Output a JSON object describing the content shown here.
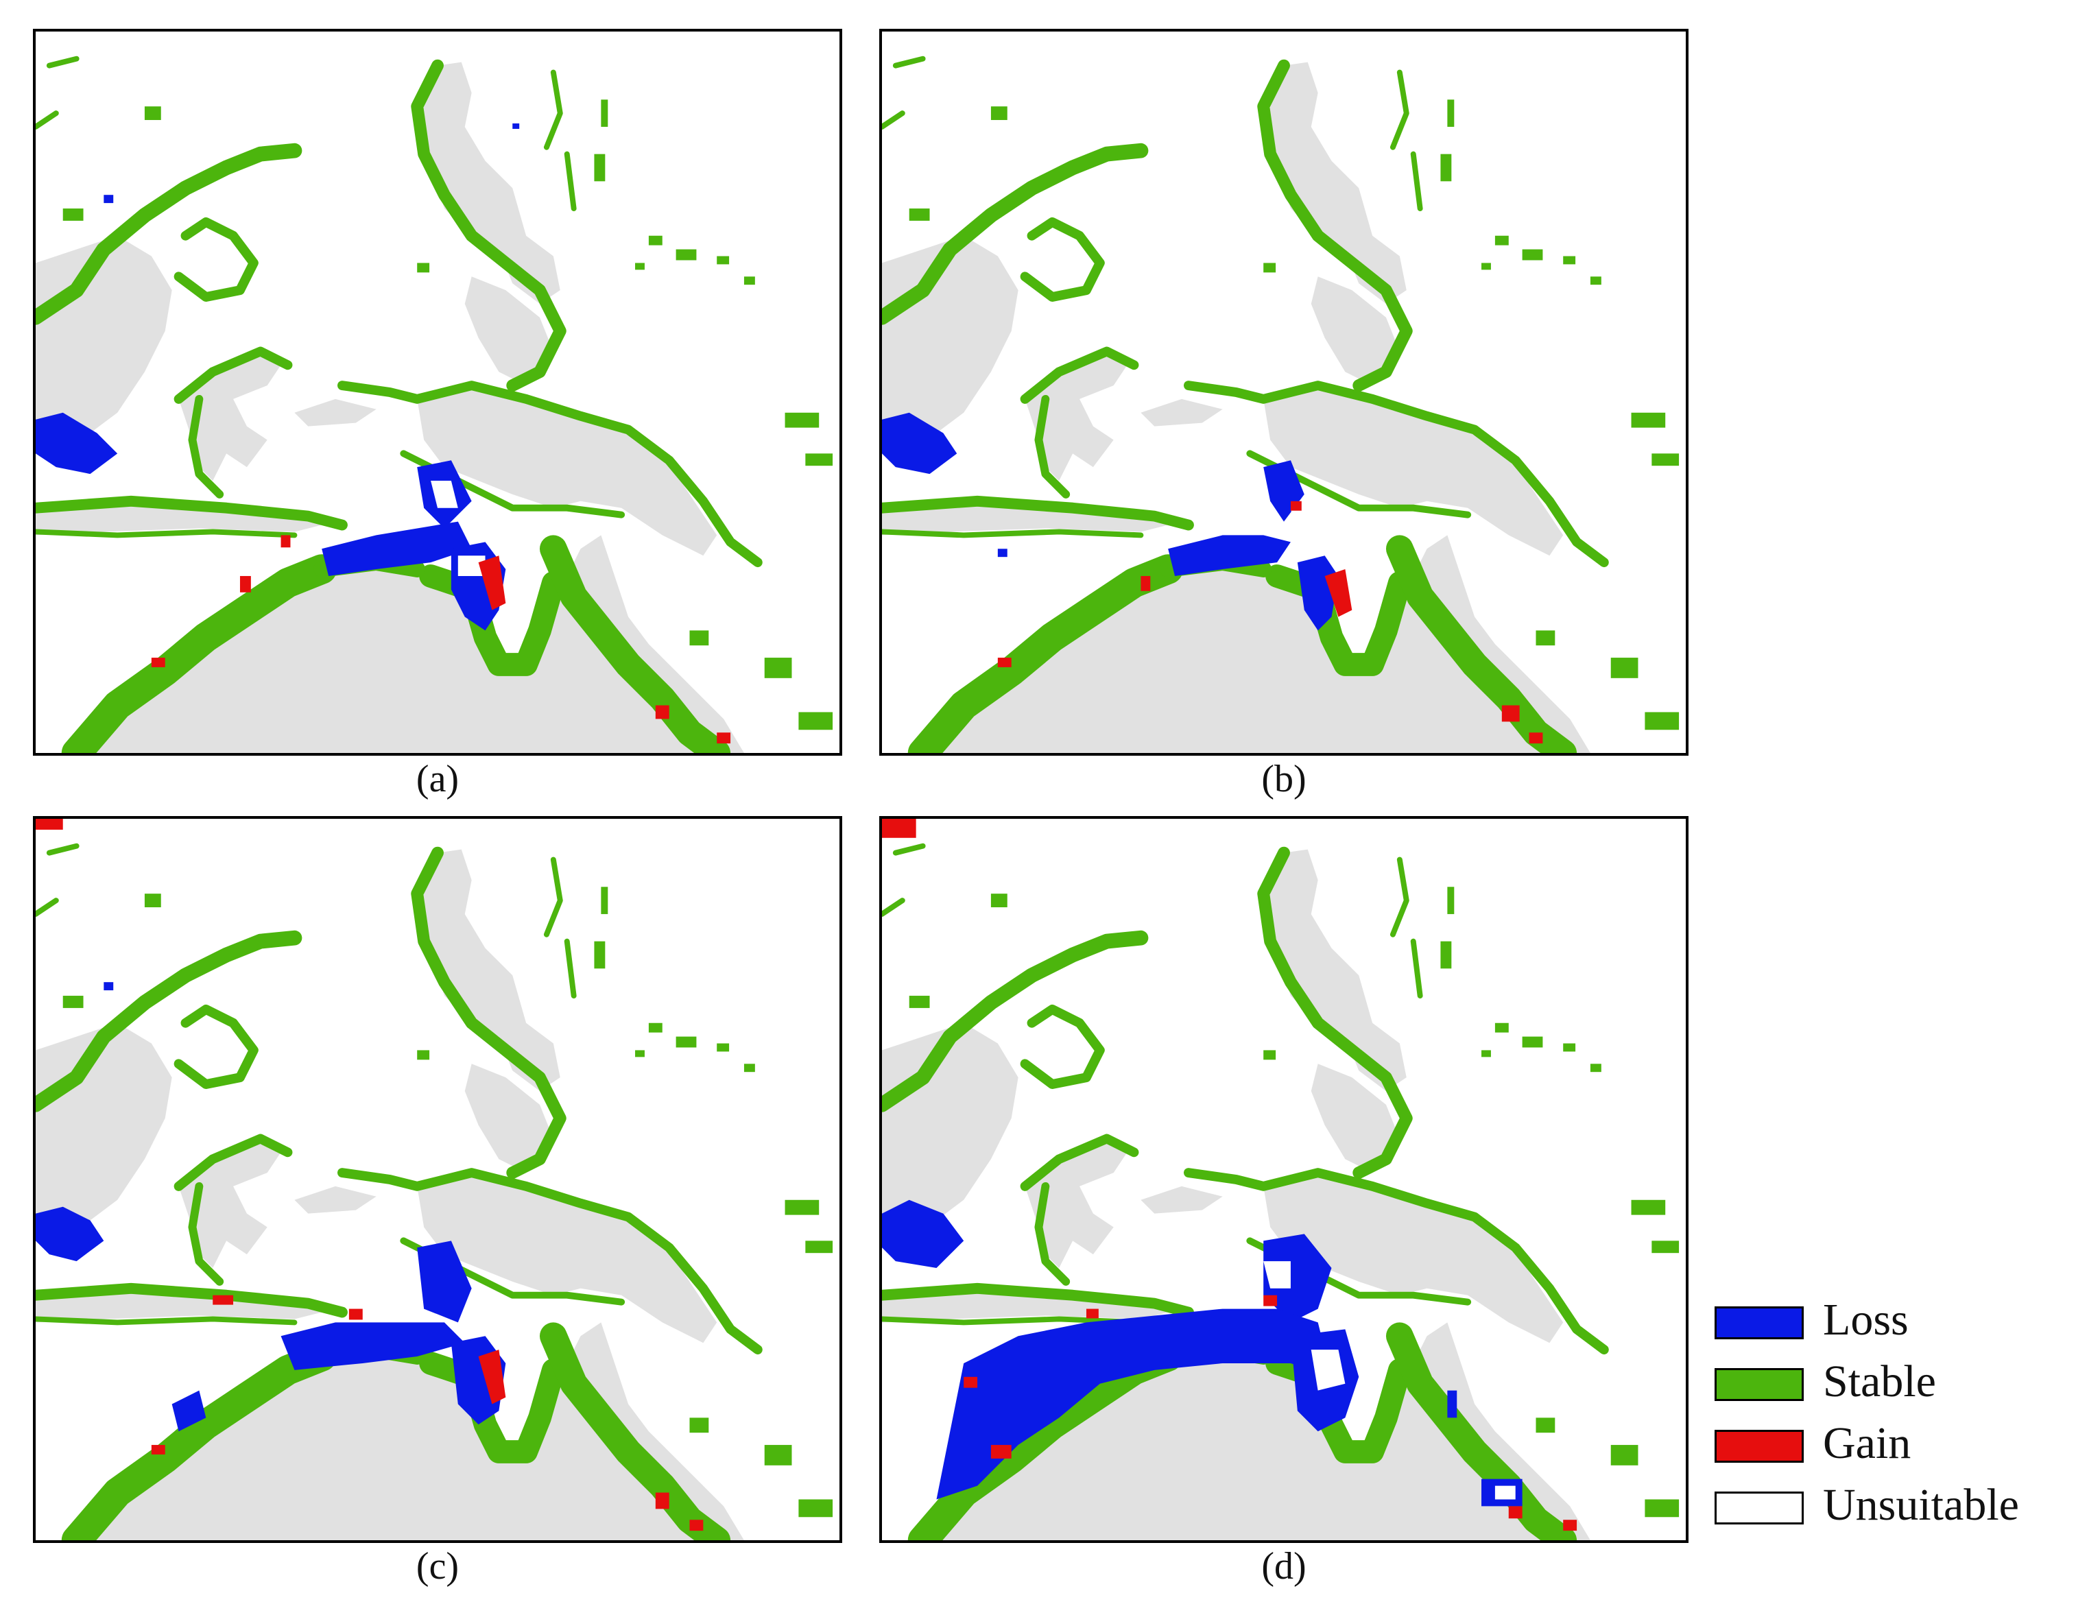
{
  "colors": {
    "loss": "#0a1ae6",
    "stable": "#4cb50d",
    "gain": "#e60e0e",
    "unsuitable": "#ffffff",
    "land": "#e1e1e1"
  },
  "panels": [
    {
      "id": "a",
      "label": "(a)"
    },
    {
      "id": "b",
      "label": "(b)"
    },
    {
      "id": "c",
      "label": "(c)"
    },
    {
      "id": "d",
      "label": "(d)"
    }
  ],
  "legend": [
    {
      "key": "loss",
      "label": "Loss"
    },
    {
      "key": "stable",
      "label": "Stable"
    },
    {
      "key": "gain",
      "label": "Gain"
    },
    {
      "key": "unsuitable",
      "label": "Unsuitable"
    }
  ]
}
